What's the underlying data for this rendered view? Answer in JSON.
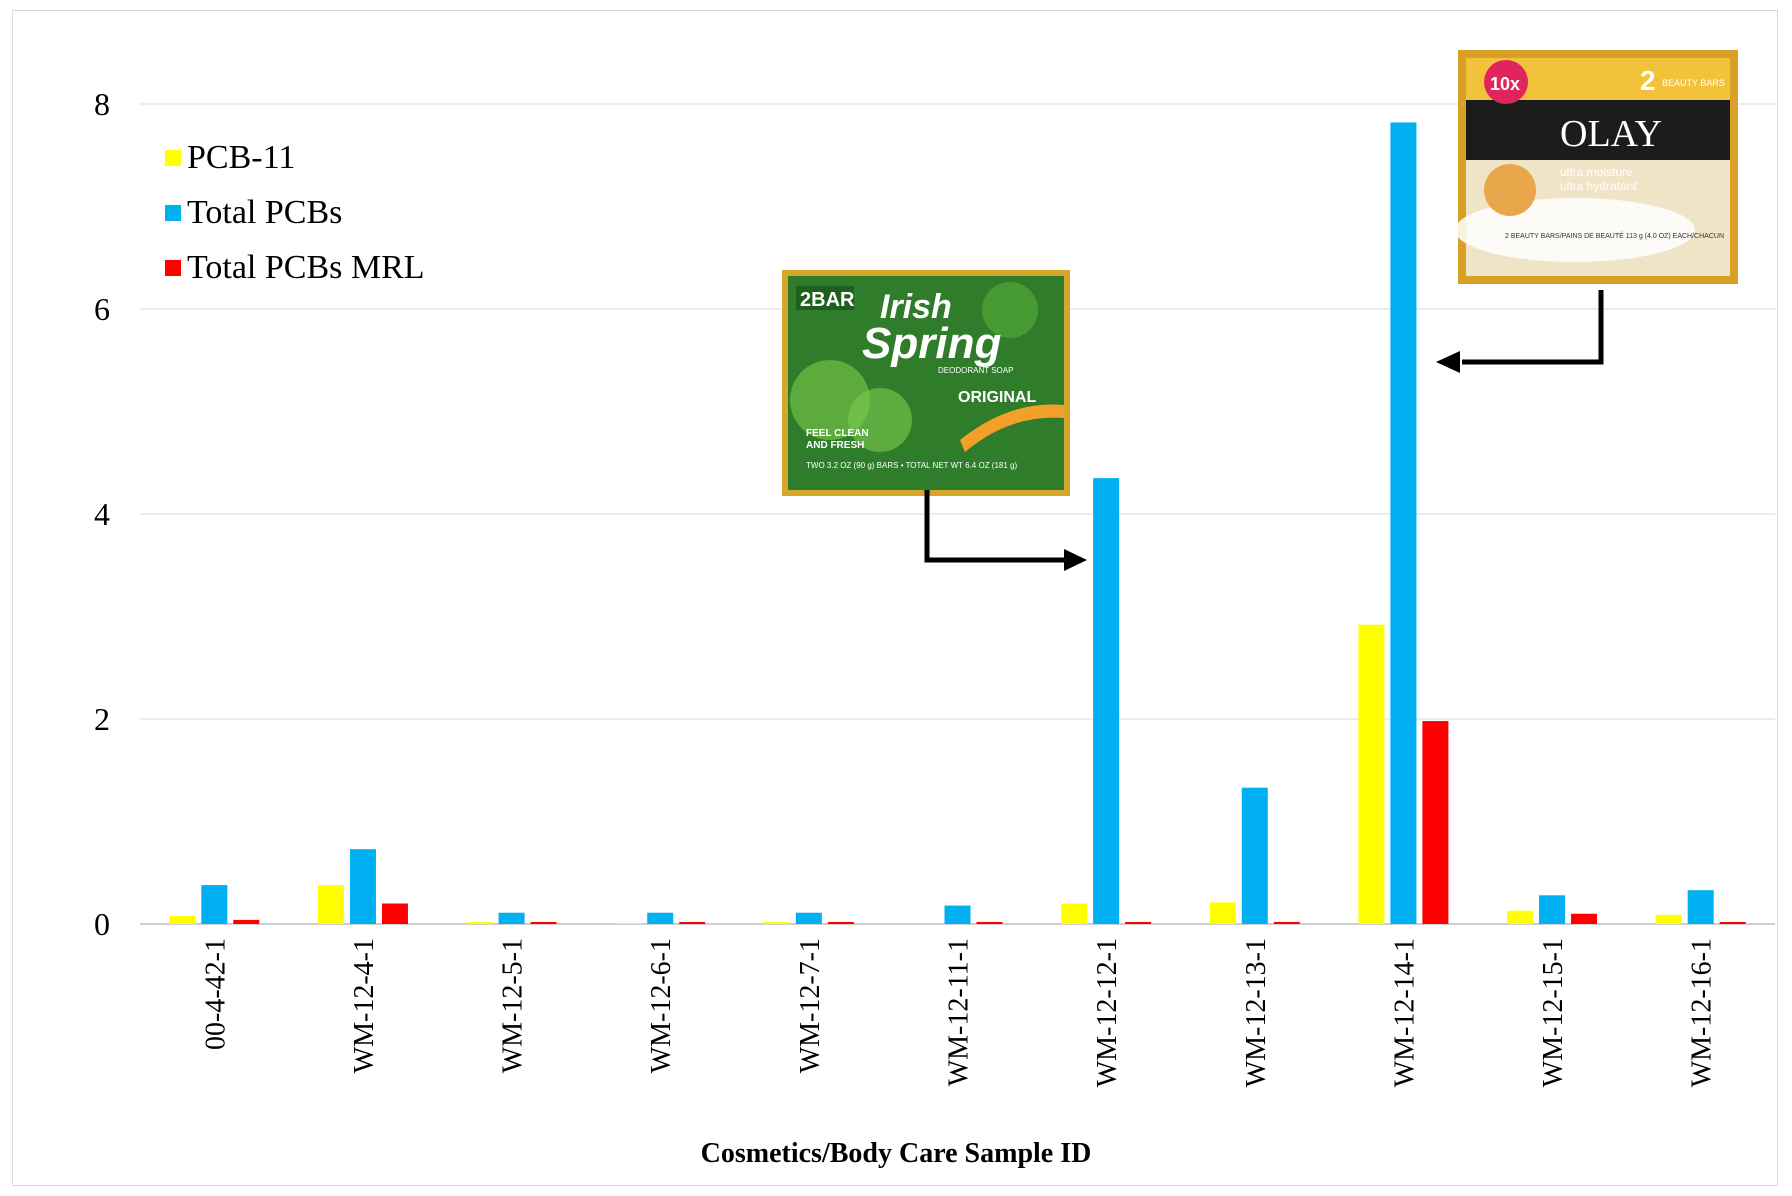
{
  "chart_data": {
    "type": "bar",
    "title": "",
    "xlabel": "Cosmetics/Body Care Sample ID",
    "ylabel": "",
    "ylim": [
      0,
      8.5
    ],
    "yticks": [
      0,
      2,
      4,
      6,
      8
    ],
    "grid": true,
    "legend_position": "top-left",
    "categories": [
      "00-4-42-1",
      "WM-12-4-1",
      "WM-12-5-1",
      "WM-12-6-1",
      "WM-12-7-1",
      "WM-12-11-1",
      "WM-12-12-1",
      "WM-12-13-1",
      "WM-12-14-1",
      "WM-12-15-1",
      "WM-12-16-1"
    ],
    "series": [
      {
        "name": "PCB-11",
        "color": "#ffff00",
        "values": [
          0.08,
          0.38,
          0.02,
          0.01,
          0.02,
          0.0,
          0.2,
          0.21,
          2.92,
          0.13,
          0.09
        ]
      },
      {
        "name": "Total PCBs",
        "color": "#00b0f0",
        "values": [
          0.38,
          0.73,
          0.11,
          0.11,
          0.11,
          0.18,
          4.35,
          1.33,
          7.82,
          0.28,
          0.33
        ]
      },
      {
        "name": "Total PCBs MRL",
        "color": "#ff0000",
        "values": [
          0.04,
          0.2,
          0.02,
          0.02,
          0.02,
          0.02,
          0.02,
          0.02,
          1.98,
          0.1,
          0.02
        ]
      }
    ],
    "annotations": [
      {
        "label": "Irish Spring",
        "points_to": "WM-12-12-1"
      },
      {
        "label": "Olay",
        "points_to": "WM-12-14-1"
      }
    ]
  },
  "images": {
    "irish": {
      "badge": "2BAR",
      "brand_line1": "Irish",
      "brand_line2": "Spring",
      "sub": "DEODORANT SOAP",
      "variant": "ORIGINAL",
      "tagline1": "FEEL CLEAN",
      "tagline2": "AND FRESH",
      "net": "TWO 3.2 OZ (90 g) BARS • TOTAL NET WT 6.4 OZ (181 g)"
    },
    "olay": {
      "badge": "10x",
      "count": "2",
      "bars_text": "BEAUTY BARS",
      "brand": "OLAY",
      "product1": "ultra moisture",
      "product2": "ultra hydratant",
      "net": "2 BEAUTY BARS/PAINS DE BEAUTÉ 113 g (4.0 OZ) EACH/CHACUN"
    }
  }
}
